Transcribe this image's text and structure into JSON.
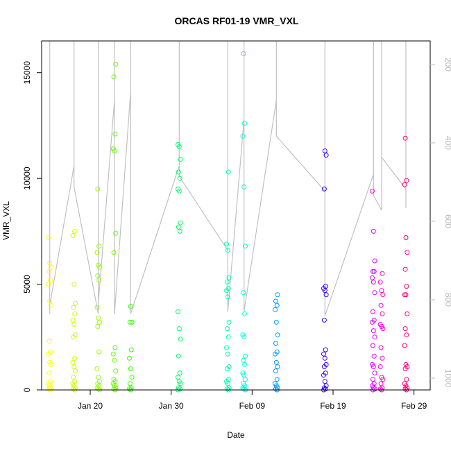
{
  "chart_data": {
    "type": "scatter",
    "title": "ORCAS RF01-19 VMR_VXL",
    "xlabel": "Date",
    "ylabel": "VMR_VXL",
    "x_type": "date",
    "xlim": [
      "2016-01-14",
      "2016-03-02"
    ],
    "ylim": [
      0,
      16500
    ],
    "x_ticks": [
      {
        "label": "Jan 20",
        "date": "2016-01-20"
      },
      {
        "label": "Jan 30",
        "date": "2016-01-30"
      },
      {
        "label": "Feb 09",
        "date": "2016-02-09"
      },
      {
        "label": "Feb 19",
        "date": "2016-02-19"
      },
      {
        "label": "Feb 29",
        "date": "2016-02-29"
      }
    ],
    "y_ticks": [
      0,
      5000,
      10000,
      15000
    ],
    "right_axis": {
      "label": "",
      "reversed": true,
      "range": [
        1030,
        140
      ],
      "ticks": [
        200,
        400,
        600,
        800,
        1000
      ],
      "color": "#b8b8b8"
    },
    "grid": false,
    "legend": "none",
    "series": [
      {
        "date": "2016-01-15",
        "color": "#ffff00",
        "values": [
          7200,
          6000,
          5800,
          5600,
          5200,
          5000,
          4200,
          4000,
          2300,
          1800,
          1700,
          1300,
          1200,
          800,
          400,
          300,
          200,
          100,
          50,
          0
        ]
      },
      {
        "date": "2016-01-18",
        "color": "#ccff00",
        "values": [
          7500,
          7300,
          5000,
          4100,
          3900,
          3600,
          3300,
          3100,
          2600,
          2500,
          1500,
          1300,
          1100,
          900,
          600,
          400,
          300,
          200,
          100,
          50,
          0
        ]
      },
      {
        "date": "2016-01-21",
        "color": "#99ff00",
        "values": [
          9500,
          6800,
          6500,
          5900,
          5800,
          5400,
          5200,
          3900,
          3400,
          3200,
          3000,
          1800,
          1000,
          600,
          400,
          300,
          200,
          100,
          50,
          0
        ]
      },
      {
        "date": "2016-01-23",
        "color": "#66ff00",
        "values": [
          15400,
          14800,
          12100,
          11400,
          11300,
          7400,
          6500,
          2000,
          1700,
          1400,
          900,
          500,
          400,
          300,
          200,
          100,
          50,
          0
        ]
      },
      {
        "date": "2016-01-25",
        "color": "#33ff00",
        "values": [
          3950,
          3200,
          3200,
          1900,
          1500,
          1000,
          600,
          300,
          100,
          50,
          0
        ]
      },
      {
        "date": "2016-01-31",
        "color": "#00ff66",
        "values": [
          11600,
          11500,
          10900,
          10300,
          10000,
          9500,
          9400,
          7900,
          7700,
          7500,
          3700,
          2900,
          2400,
          1600,
          800,
          600,
          400,
          300,
          100,
          50,
          0
        ]
      },
      {
        "date": "2016-02-06",
        "color": "#00ffaa",
        "values": [
          10300,
          6900,
          6600,
          5300,
          5100,
          4800,
          4700,
          4400,
          3200,
          2900,
          2500,
          2000,
          1700,
          1100,
          1000,
          500,
          400,
          300,
          100,
          50,
          0
        ]
      },
      {
        "date": "2016-02-08",
        "color": "#00ffdd",
        "values": [
          15900,
          12600,
          12000,
          9600,
          6800,
          4600,
          3600,
          2600,
          2500,
          1600,
          1400,
          1200,
          800,
          700,
          500,
          300,
          200,
          100,
          50,
          0
        ]
      },
      {
        "date": "2016-02-12",
        "color": "#0099ff",
        "values": [
          4500,
          4200,
          4000,
          3800,
          3200,
          2600,
          2200,
          1800,
          1700,
          1300,
          1100,
          900,
          500,
          300,
          200,
          100,
          50,
          0
        ]
      },
      {
        "date": "2016-02-18",
        "color": "#3300ff",
        "values": [
          11300,
          11100,
          9500,
          4900,
          4800,
          4700,
          4500,
          3300,
          1900,
          1700,
          1500,
          1200,
          1100,
          800,
          700,
          400,
          200,
          100,
          50,
          0
        ]
      },
      {
        "date": "2016-02-24",
        "color": "#dd00ff",
        "values": [
          9400,
          7500,
          6100,
          5600,
          5600,
          5300,
          5100,
          4600,
          3700,
          3300,
          3200,
          2800,
          2500,
          2100,
          1600,
          1200,
          1100,
          800,
          500,
          300,
          200,
          100,
          50,
          0
        ]
      },
      {
        "date": "2016-02-25",
        "color": "#ff00cc",
        "values": [
          5500,
          5100,
          4700,
          4500,
          4000,
          3600,
          3100,
          3000,
          2900,
          2000,
          1500,
          1100,
          600,
          500,
          300,
          100,
          50,
          0
        ]
      },
      {
        "date": "2016-02-28",
        "color": "#ff0077",
        "values": [
          11900,
          9900,
          9700,
          7200,
          6500,
          5700,
          4900,
          4500,
          4500,
          3600,
          2900,
          2600,
          2100,
          1200,
          1100,
          1000,
          500,
          300,
          200,
          100,
          50,
          0
        ]
      }
    ],
    "profile_line": {
      "color": "#c0c0c0",
      "points": [
        [
          "2016-01-15",
          3600
        ],
        [
          "2016-01-15",
          16500
        ],
        [
          "2016-01-15",
          4000
        ],
        [
          "2016-01-18",
          10600
        ],
        [
          "2016-01-18",
          16500
        ],
        [
          "2016-01-18",
          9600
        ],
        [
          "2016-01-21",
          3600
        ],
        [
          "2016-01-21",
          16500
        ],
        [
          "2016-01-21",
          4100
        ],
        [
          "2016-01-23",
          13700
        ],
        [
          "2016-01-23",
          16500
        ],
        [
          "2016-01-23",
          3600
        ],
        [
          "2016-01-25",
          14100
        ],
        [
          "2016-01-25",
          16500
        ],
        [
          "2016-01-25",
          3600
        ],
        [
          "2016-01-31",
          10600
        ],
        [
          "2016-01-31",
          16500
        ],
        [
          "2016-01-31",
          10100
        ],
        [
          "2016-02-06",
          6600
        ],
        [
          "2016-02-06",
          16500
        ],
        [
          "2016-02-06",
          3700
        ],
        [
          "2016-02-08",
          12800
        ],
        [
          "2016-02-08",
          16500
        ],
        [
          "2016-02-08",
          3700
        ],
        [
          "2016-02-12",
          13700
        ],
        [
          "2016-02-12",
          16500
        ],
        [
          "2016-02-12",
          12000
        ],
        [
          "2016-02-18",
          9400
        ],
        [
          "2016-02-18",
          16500
        ],
        [
          "2016-02-18",
          3500
        ],
        [
          "2016-02-24",
          10200
        ],
        [
          "2016-02-24",
          16500
        ],
        [
          "2016-02-24",
          9200
        ],
        [
          "2016-02-25",
          8500
        ],
        [
          "2016-02-25",
          16500
        ],
        [
          "2016-02-25",
          11000
        ],
        [
          "2016-02-28",
          9500
        ],
        [
          "2016-02-28",
          16500
        ],
        [
          "2016-02-28",
          8600
        ]
      ]
    }
  }
}
